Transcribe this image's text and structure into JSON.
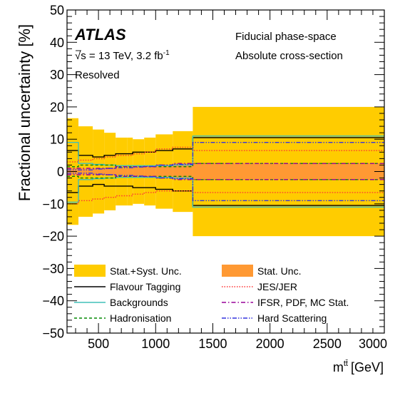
{
  "chart_data": {
    "type": "line",
    "experiment": "ATLAS",
    "energy_label": "√s = 13 TeV, 3.2 fb",
    "energy_label_superscript": "-1",
    "selection_label": "Resolved",
    "phase_space_label": "Fiducial phase-space",
    "cross_section_label": "Absolute cross-section",
    "xlabel": "m",
    "xlabel_superscript": "tt̄",
    "xlabel_unit": "[GeV]",
    "ylabel": "Fractional uncertainty [%]",
    "xlim": [
      225,
      3000
    ],
    "ylim": [
      -50,
      50
    ],
    "x_ticks": [
      "500",
      "1000",
      "1500",
      "2000",
      "2500",
      "3000"
    ],
    "x_tick_values": [
      500,
      1000,
      1500,
      2000,
      2500,
      3000
    ],
    "y_ticks": [
      "50",
      "40",
      "30",
      "20",
      "10",
      "0",
      "−10",
      "−20",
      "−30",
      "−40",
      "−50"
    ],
    "y_tick_values": [
      50,
      40,
      30,
      20,
      10,
      0,
      -10,
      -20,
      -30,
      -40,
      -50
    ],
    "bin_edges": [
      225,
      325,
      450,
      550,
      650,
      750,
      800,
      900,
      1000,
      1150,
      1325,
      3000
    ],
    "bands": [
      {
        "name": "Stat.+Syst. Unc.",
        "color": "#ffcc00",
        "up": [
          16.5,
          14,
          13,
          12,
          10.5,
          10.5,
          10,
          10.5,
          11.5,
          12.5,
          20
        ],
        "down": [
          -16.5,
          -14,
          -13,
          -12,
          -10.5,
          -10.5,
          -10,
          -10.5,
          -11.5,
          -12.5,
          -20
        ]
      },
      {
        "name": "Stat. Unc.",
        "color": "#ff9933",
        "up": [
          1,
          1,
          1,
          1,
          1,
          1.2,
          1.4,
          1.6,
          2,
          2.5,
          2.5
        ],
        "down": [
          -1,
          -1,
          -1,
          -1,
          -1,
          -1.2,
          -1.4,
          -1.6,
          -2,
          -2.5,
          -2.5
        ]
      }
    ],
    "series": [
      {
        "name": "Flavour Tagging",
        "color": "#000000",
        "style": "solid",
        "up": [
          6.5,
          5,
          4.5,
          5,
          5.5,
          5.5,
          6,
          6,
          6.5,
          7,
          10.5
        ],
        "down": [
          -6.5,
          -4.5,
          -4,
          -4.5,
          -4.5,
          -4.5,
          -5,
          -5,
          -5.5,
          -6,
          -10.5
        ]
      },
      {
        "name": "Backgrounds",
        "color": "#40c0b8",
        "style": "solid",
        "up": [
          9,
          2.5,
          2.2,
          2,
          1.8,
          1.8,
          1.8,
          1.8,
          1.8,
          2,
          11
        ],
        "down": [
          -9.5,
          -2.5,
          -2.2,
          -2,
          -1.8,
          -1.8,
          -1.8,
          -1.8,
          -1.8,
          -2,
          -11
        ]
      },
      {
        "name": "Hadronisation",
        "color": "#008800",
        "style": "dashed",
        "up": [
          1.5,
          2,
          2,
          2,
          1.5,
          1.5,
          1.5,
          1.5,
          1.5,
          1.5,
          2.5
        ],
        "down": [
          -1.5,
          -2,
          -2,
          -2,
          -1.5,
          -1.5,
          -1.5,
          -1.5,
          -1.5,
          -1.5,
          -2.5
        ]
      },
      {
        "name": "JES/JER",
        "color": "#ff3333",
        "style": "dotted",
        "up": [
          3,
          3.5,
          4,
          4.5,
          5,
          5,
          5.5,
          6,
          7,
          7.5,
          6.5
        ],
        "down": [
          -10,
          -9,
          -8.5,
          -8,
          -7.5,
          -7.5,
          -7,
          -6.5,
          -6,
          -6,
          -6.5
        ]
      },
      {
        "name": "IFSR, PDF, MC Stat.",
        "color": "#990099",
        "style": "dashdot",
        "up": [
          1,
          1,
          1,
          1,
          1.5,
          1.5,
          1.5,
          1.5,
          2,
          2.5,
          2.5
        ],
        "down": [
          -1,
          -1,
          -1,
          -1,
          -1.5,
          -1.5,
          -1.5,
          -1.5,
          -2,
          -2.5,
          -2.5
        ]
      },
      {
        "name": "Hard Scattering",
        "color": "#3333dd",
        "style": "dashdotdot",
        "up": [
          0.5,
          0.5,
          0.8,
          1,
          1.2,
          1.2,
          1.4,
          1.6,
          2,
          2.2,
          9
        ],
        "down": [
          -0.5,
          -0.5,
          -0.8,
          -1,
          -1.2,
          -1.2,
          -1.4,
          -1.6,
          -2,
          -2.2,
          -9
        ]
      }
    ],
    "legend": [
      {
        "label": "Stat.+Syst. Unc.",
        "kind": "fill",
        "color": "#ffcc00",
        "style": "solid"
      },
      {
        "label": "Stat. Unc.",
        "kind": "fill",
        "color": "#ff9933",
        "style": "solid"
      },
      {
        "label": "Flavour Tagging",
        "kind": "line",
        "color": "#000000",
        "style": "solid"
      },
      {
        "label": "JES/JER",
        "kind": "line",
        "color": "#ff3333",
        "style": "dotted"
      },
      {
        "label": "Backgrounds",
        "kind": "line",
        "color": "#40c0b8",
        "style": "solid"
      },
      {
        "label": "IFSR, PDF, MC Stat.",
        "kind": "line",
        "color": "#990099",
        "style": "dashdot"
      },
      {
        "label": "Hadronisation",
        "kind": "line",
        "color": "#008800",
        "style": "dashed"
      },
      {
        "label": "Hard Scattering",
        "kind": "line",
        "color": "#3333dd",
        "style": "dashdotdot"
      }
    ],
    "legend_placement": "bottom",
    "grid": false
  }
}
